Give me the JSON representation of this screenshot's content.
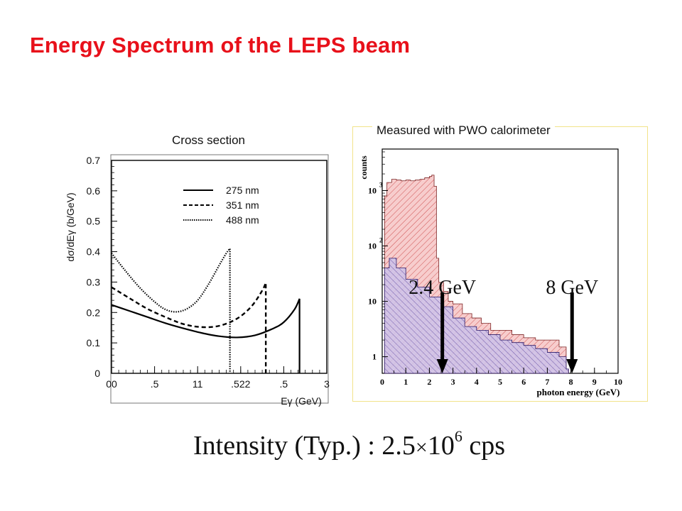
{
  "slide": {
    "title": "Energy Spectrum of the LEPS beam",
    "formula": {
      "prefix": "Intensity (Typ.) : 2.5",
      "times": "×",
      "base": "10",
      "exponent": "6",
      "unit": "cps"
    }
  },
  "chart_data": [
    {
      "type": "line",
      "title": "Cross section",
      "xlabel": "Eγ (GeV)",
      "ylabel": "dσ/dEγ (b/GeV)",
      "xlim": [
        0,
        3
      ],
      "ylim": [
        0,
        0.7
      ],
      "xtick_labels": [
        "00",
        ".5",
        "11",
        ".522",
        ".5",
        "3"
      ],
      "ytick_labels": [
        "0",
        "0.1",
        "0.2",
        "0.3",
        "0.4",
        "0.5",
        "0.6",
        "0.7"
      ],
      "legend_position": "top-center",
      "series": [
        {
          "name": "275 nm",
          "style": "solid",
          "x": [
            0,
            0.25,
            0.5,
            0.75,
            1.0,
            1.25,
            1.5,
            1.75,
            2.0,
            2.25,
            2.4,
            2.55,
            2.62,
            2.62
          ],
          "y": [
            0.225,
            0.205,
            0.185,
            0.165,
            0.148,
            0.133,
            0.122,
            0.118,
            0.125,
            0.147,
            0.168,
            0.21,
            0.245,
            0
          ]
        },
        {
          "name": "351 nm",
          "style": "dashed",
          "x": [
            0,
            0.25,
            0.5,
            0.75,
            1.0,
            1.25,
            1.5,
            1.75,
            1.95,
            2.1,
            2.15,
            2.15
          ],
          "y": [
            0.283,
            0.247,
            0.212,
            0.185,
            0.162,
            0.152,
            0.156,
            0.18,
            0.22,
            0.272,
            0.298,
            0
          ]
        },
        {
          "name": "488 nm",
          "style": "dotted",
          "x": [
            0,
            0.2,
            0.4,
            0.6,
            0.75,
            0.9,
            1.05,
            1.2,
            1.35,
            1.5,
            1.6,
            1.65,
            1.65
          ],
          "y": [
            0.395,
            0.335,
            0.28,
            0.235,
            0.21,
            0.202,
            0.212,
            0.24,
            0.292,
            0.355,
            0.395,
            0.41,
            0
          ]
        }
      ]
    },
    {
      "type": "area",
      "title": "Measured with PWO calorimeter",
      "xlabel": "photon energy (GeV)",
      "ylabel": "counts",
      "xlim": [
        0,
        10
      ],
      "ylog": true,
      "ylim_exponent": [
        -0.3,
        3.75
      ],
      "xtick_labels": [
        "0",
        "1",
        "2",
        "3",
        "4",
        "5",
        "6",
        "7",
        "8",
        "9",
        "10"
      ],
      "ytick_labels": [
        "1",
        "10",
        "10",
        "10"
      ],
      "ytick_exponents": [
        "",
        "",
        "2",
        "3"
      ],
      "series": [
        {
          "name": "",
          "color": "#f4b8b8",
          "hatch": "#c83a3a",
          "x": [
            0.1,
            0.2,
            0.4,
            0.6,
            0.8,
            1.0,
            1.2,
            1.4,
            1.6,
            1.8,
            2.0,
            2.1,
            2.2,
            2.3,
            2.4,
            2.6,
            2.8,
            3.0,
            3.4,
            3.8,
            4.2,
            4.6,
            5.0,
            5.5,
            6.0,
            6.5,
            7.0,
            7.5,
            7.8
          ],
          "y": [
            800,
            1400,
            1600,
            1550,
            1500,
            1550,
            1500,
            1550,
            1600,
            1700,
            1800,
            1900,
            1200,
            60,
            22,
            15,
            10,
            9,
            6,
            5,
            4,
            3,
            3,
            2.5,
            2.2,
            2,
            2,
            1.5,
            0.6
          ]
        },
        {
          "name": "",
          "color": "#c9bfe8",
          "hatch": "#4a3a9a",
          "x": [
            0.1,
            0.3,
            0.6,
            1.0,
            1.5,
            2.0,
            2.5,
            3.0,
            3.5,
            4.0,
            4.5,
            5.0,
            5.5,
            6.0,
            6.5,
            7.0,
            7.5,
            7.8
          ],
          "y": [
            40,
            60,
            40,
            25,
            18,
            12,
            8,
            5,
            3.5,
            3,
            2.5,
            2,
            1.8,
            1.6,
            1.4,
            1.2,
            1.0,
            0.6
          ]
        }
      ],
      "annotations": [
        {
          "text": "2.4 GeV",
          "x": 2.55
        },
        {
          "text": "8 GeV",
          "x": 8.05
        }
      ]
    }
  ]
}
